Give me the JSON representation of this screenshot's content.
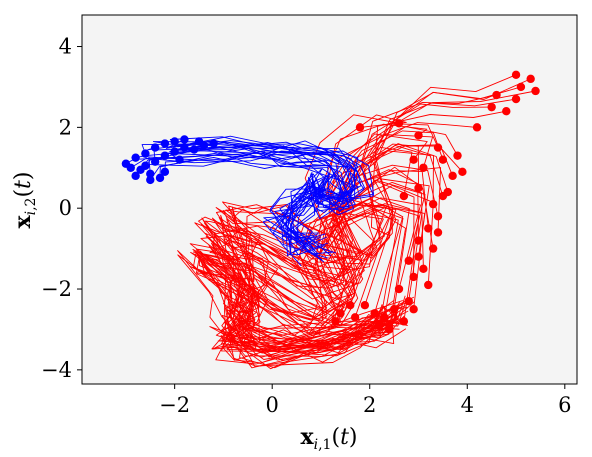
{
  "chart_data": {
    "type": "line",
    "title": "",
    "xlabel": "x_{i,1}(t)",
    "ylabel": "x_{i,2}(t)",
    "xlim": [
      -3.9,
      6.25
    ],
    "ylim": [
      -4.35,
      4.78
    ],
    "xticks": [
      -2,
      0,
      2,
      4,
      6
    ],
    "yticks": [
      -4,
      -2,
      0,
      2,
      4
    ],
    "xtick_labels": [
      "−2",
      "0",
      "2",
      "4",
      "6"
    ],
    "ytick_labels": [
      "−4",
      "−2",
      "0",
      "2",
      "4"
    ],
    "grid": false,
    "legend": "none",
    "background": "#f4f4f4",
    "series": [
      {
        "color": "#0000ff",
        "path": [
          [
            -2.4,
            1.5
          ],
          [
            -1.2,
            1.55
          ],
          [
            -0.2,
            1.5
          ],
          [
            0.4,
            1.45
          ],
          [
            1.0,
            1.35
          ],
          [
            1.5,
            1.0
          ],
          [
            1.6,
            0.4
          ],
          [
            1.3,
            0.2
          ],
          [
            0.8,
            0.3
          ],
          [
            0.9,
            0.7
          ],
          [
            0.6,
            0.2
          ],
          [
            0.2,
            -0.3
          ],
          [
            0.6,
            -0.9
          ],
          [
            0.9,
            -1.0
          ]
        ],
        "endpoints": [
          [
            -3.0,
            1.1
          ],
          [
            -2.8,
            1.25
          ],
          [
            -2.6,
            1.35
          ],
          [
            -2.4,
            1.5
          ],
          [
            -2.2,
            1.6
          ],
          [
            -2.0,
            1.65
          ],
          [
            -1.8,
            1.7
          ],
          [
            -1.5,
            1.65
          ],
          [
            -1.2,
            1.6
          ],
          [
            -2.9,
            1.0
          ],
          [
            -2.7,
            0.95
          ],
          [
            -2.5,
            0.85
          ],
          [
            -2.3,
            0.75
          ],
          [
            -2.6,
            1.05
          ],
          [
            -2.4,
            1.15
          ],
          [
            -2.2,
            1.3
          ],
          [
            -2.0,
            1.4
          ],
          [
            -1.8,
            1.5
          ],
          [
            -1.6,
            1.45
          ],
          [
            -1.4,
            1.55
          ],
          [
            -2.8,
            0.8
          ],
          [
            -2.5,
            0.7
          ],
          [
            -2.2,
            0.9
          ],
          [
            -1.9,
            1.2
          ]
        ]
      },
      {
        "color": "#ff0000",
        "path": [
          [
            3.2,
            2.3
          ],
          [
            2.4,
            2.4
          ],
          [
            1.6,
            1.8
          ],
          [
            1.2,
            0.8
          ],
          [
            1.6,
            -0.4
          ],
          [
            1.6,
            -0.9
          ],
          [
            1.2,
            -1.3
          ],
          [
            0.6,
            -1.1
          ],
          [
            -0.4,
            -0.4
          ],
          [
            -1.0,
            -0.3
          ],
          [
            -1.3,
            -0.1
          ],
          [
            -0.8,
            -0.9
          ],
          [
            -0.6,
            -1.6
          ],
          [
            -0.5,
            -2.3
          ],
          [
            -0.8,
            -2.6
          ],
          [
            -0.7,
            -3.0
          ],
          [
            0.0,
            -3.3
          ],
          [
            1.2,
            -3.2
          ],
          [
            2.2,
            -2.9
          ],
          [
            2.5,
            -2.6
          ]
        ],
        "endpoints": [
          [
            1.8,
            2.0
          ],
          [
            2.6,
            2.1
          ],
          [
            3.0,
            1.8
          ],
          [
            3.4,
            1.5
          ],
          [
            3.5,
            1.2
          ],
          [
            3.8,
            1.3
          ],
          [
            3.9,
            0.9
          ],
          [
            4.2,
            2.0
          ],
          [
            4.5,
            2.5
          ],
          [
            4.8,
            2.4
          ],
          [
            5.0,
            2.7
          ],
          [
            5.1,
            3.0
          ],
          [
            5.3,
            3.2
          ],
          [
            5.0,
            3.3
          ],
          [
            4.6,
            2.8
          ],
          [
            5.4,
            2.9
          ],
          [
            3.0,
            0.5
          ],
          [
            3.3,
            0.1
          ],
          [
            3.5,
            0.3
          ],
          [
            3.4,
            -0.2
          ],
          [
            3.2,
            -0.5
          ],
          [
            3.0,
            -0.8
          ],
          [
            3.3,
            -1.0
          ],
          [
            2.8,
            -1.3
          ],
          [
            3.1,
            -1.5
          ],
          [
            2.9,
            -1.7
          ],
          [
            3.2,
            -1.9
          ],
          [
            2.6,
            -2.0
          ],
          [
            2.8,
            -2.3
          ],
          [
            2.5,
            -2.5
          ],
          [
            2.3,
            -2.7
          ],
          [
            2.1,
            -2.6
          ],
          [
            1.9,
            -2.4
          ],
          [
            1.6,
            -2.4
          ],
          [
            1.4,
            -2.6
          ],
          [
            1.3,
            -2.8
          ],
          [
            2.7,
            -2.8
          ],
          [
            2.4,
            -3.0
          ],
          [
            2.2,
            -2.9
          ],
          [
            1.7,
            -2.7
          ],
          [
            2.9,
            -2.5
          ],
          [
            3.0,
            -1.2
          ],
          [
            3.4,
            -0.6
          ],
          [
            3.6,
            0.4
          ],
          [
            3.7,
            0.8
          ],
          [
            3.1,
            1.0
          ],
          [
            2.9,
            1.2
          ],
          [
            2.7,
            0.3
          ]
        ]
      }
    ]
  }
}
